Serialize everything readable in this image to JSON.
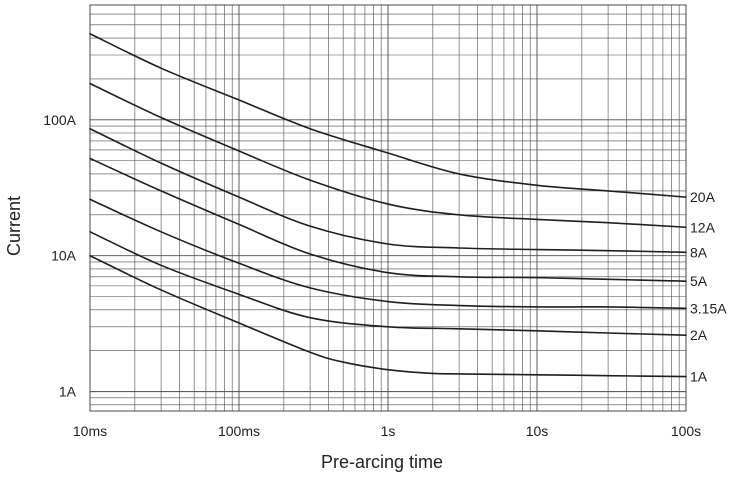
{
  "chart_data": {
    "type": "line",
    "x_scale": "log",
    "y_scale": "log",
    "xlabel": "Pre-arcing time",
    "ylabel": "Current",
    "xlim": [
      "10ms",
      "100s"
    ],
    "ylim": [
      0.72,
      700
    ],
    "grid": true,
    "x_ticks": [
      {
        "value": 0.01,
        "label": "10ms"
      },
      {
        "value": 0.1,
        "label": "100ms"
      },
      {
        "value": 1,
        "label": "1s"
      },
      {
        "value": 10,
        "label": "10s"
      },
      {
        "value": 100,
        "label": "100s"
      }
    ],
    "y_ticks": [
      {
        "value": 1,
        "label": "1A"
      },
      {
        "value": 10,
        "label": "10A"
      },
      {
        "value": 100,
        "label": "100A"
      }
    ],
    "series": [
      {
        "name": "20A",
        "x": [
          0.01,
          0.03,
          0.1,
          0.3,
          1,
          3,
          10,
          30,
          100
        ],
        "y": [
          430,
          240,
          140,
          86,
          57,
          40,
          33,
          30,
          27
        ]
      },
      {
        "name": "12A",
        "x": [
          0.01,
          0.03,
          0.1,
          0.3,
          1,
          3,
          10,
          30,
          100
        ],
        "y": [
          185,
          104,
          59,
          36,
          24,
          20,
          18.5,
          17.5,
          16.2
        ]
      },
      {
        "name": "8A",
        "x": [
          0.01,
          0.03,
          0.1,
          0.3,
          1,
          3,
          10,
          30,
          100
        ],
        "y": [
          86,
          48,
          27,
          16.5,
          12.2,
          11.4,
          11.1,
          10.9,
          10.6
        ]
      },
      {
        "name": "5A",
        "x": [
          0.01,
          0.03,
          0.1,
          0.3,
          1,
          3,
          10,
          30,
          100
        ],
        "y": [
          52,
          30,
          17,
          10.3,
          7.5,
          7.0,
          6.9,
          6.7,
          6.5
        ]
      },
      {
        "name": "3.15A",
        "x": [
          0.01,
          0.03,
          0.1,
          0.3,
          1,
          3,
          10,
          30,
          100
        ],
        "y": [
          26,
          15,
          8.8,
          5.8,
          4.6,
          4.3,
          4.2,
          4.2,
          4.1
        ]
      },
      {
        "name": "2A",
        "x": [
          0.01,
          0.03,
          0.1,
          0.3,
          1,
          3,
          10,
          30,
          100
        ],
        "y": [
          15,
          8.5,
          5.2,
          3.5,
          3.0,
          2.9,
          2.8,
          2.7,
          2.6
        ]
      },
      {
        "name": "1A",
        "x": [
          0.01,
          0.03,
          0.1,
          0.3,
          0.5,
          1,
          2,
          3,
          10,
          30,
          100
        ],
        "y": [
          10,
          5.6,
          3.2,
          1.95,
          1.65,
          1.45,
          1.36,
          1.35,
          1.33,
          1.31,
          1.29
        ]
      }
    ]
  },
  "colors": {
    "background": "#ffffff",
    "grid": "#4a4a4a",
    "line": "#1f1f1f",
    "text": "#222222"
  }
}
